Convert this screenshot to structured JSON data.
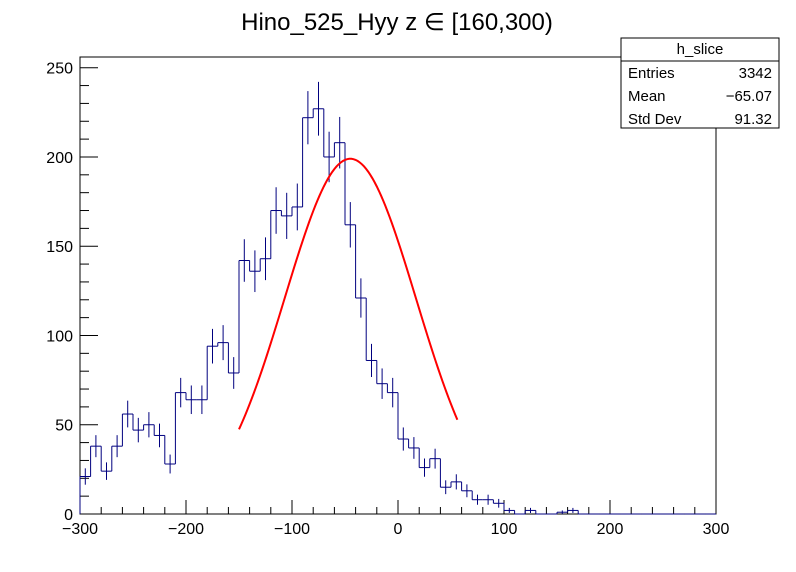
{
  "chart_data": {
    "type": "bar",
    "title": "Hino_525_Hyy z  ∈ [160,300)",
    "xlabel": "",
    "ylabel": "",
    "xlim": [
      -300,
      300
    ],
    "ylim": [
      0,
      256
    ],
    "x_ticks": [
      -300,
      -200,
      -100,
      0,
      100,
      200,
      300
    ],
    "y_ticks": [
      0,
      50,
      100,
      150,
      200,
      250
    ],
    "x_tick_labels": [
      "−300",
      "−200",
      "−100",
      "0",
      "100",
      "200",
      "300"
    ],
    "y_tick_labels": [
      "0",
      "50",
      "100",
      "150",
      "200",
      "250"
    ],
    "grid": false,
    "histogram": {
      "bin_width": 10,
      "x_start": -300,
      "color": "#00007f",
      "values": [
        21,
        38,
        24,
        38,
        56,
        47,
        50,
        44,
        28,
        68,
        64,
        64,
        94,
        96,
        79,
        142,
        136,
        143,
        170,
        167,
        172,
        222,
        227,
        200,
        208,
        162,
        121,
        86,
        73,
        68,
        42,
        37,
        26,
        31,
        15,
        18,
        13,
        8,
        8,
        6,
        2,
        0,
        2,
        0,
        0,
        1,
        2,
        0,
        0,
        0,
        0,
        0,
        0,
        0,
        0,
        0,
        0,
        0,
        0,
        0
      ]
    },
    "fit": {
      "type": "gaussian",
      "color": "#ff0000",
      "constant": 199,
      "mean": -45,
      "sigma": 62,
      "x_range": [
        -150,
        57
      ]
    },
    "stats_box": {
      "name": "h_slice",
      "rows": [
        {
          "label": "Entries",
          "value": "3342"
        },
        {
          "label": "Mean",
          "value": "−65.07"
        },
        {
          "label": "Std Dev",
          "value": "91.32"
        }
      ]
    }
  }
}
